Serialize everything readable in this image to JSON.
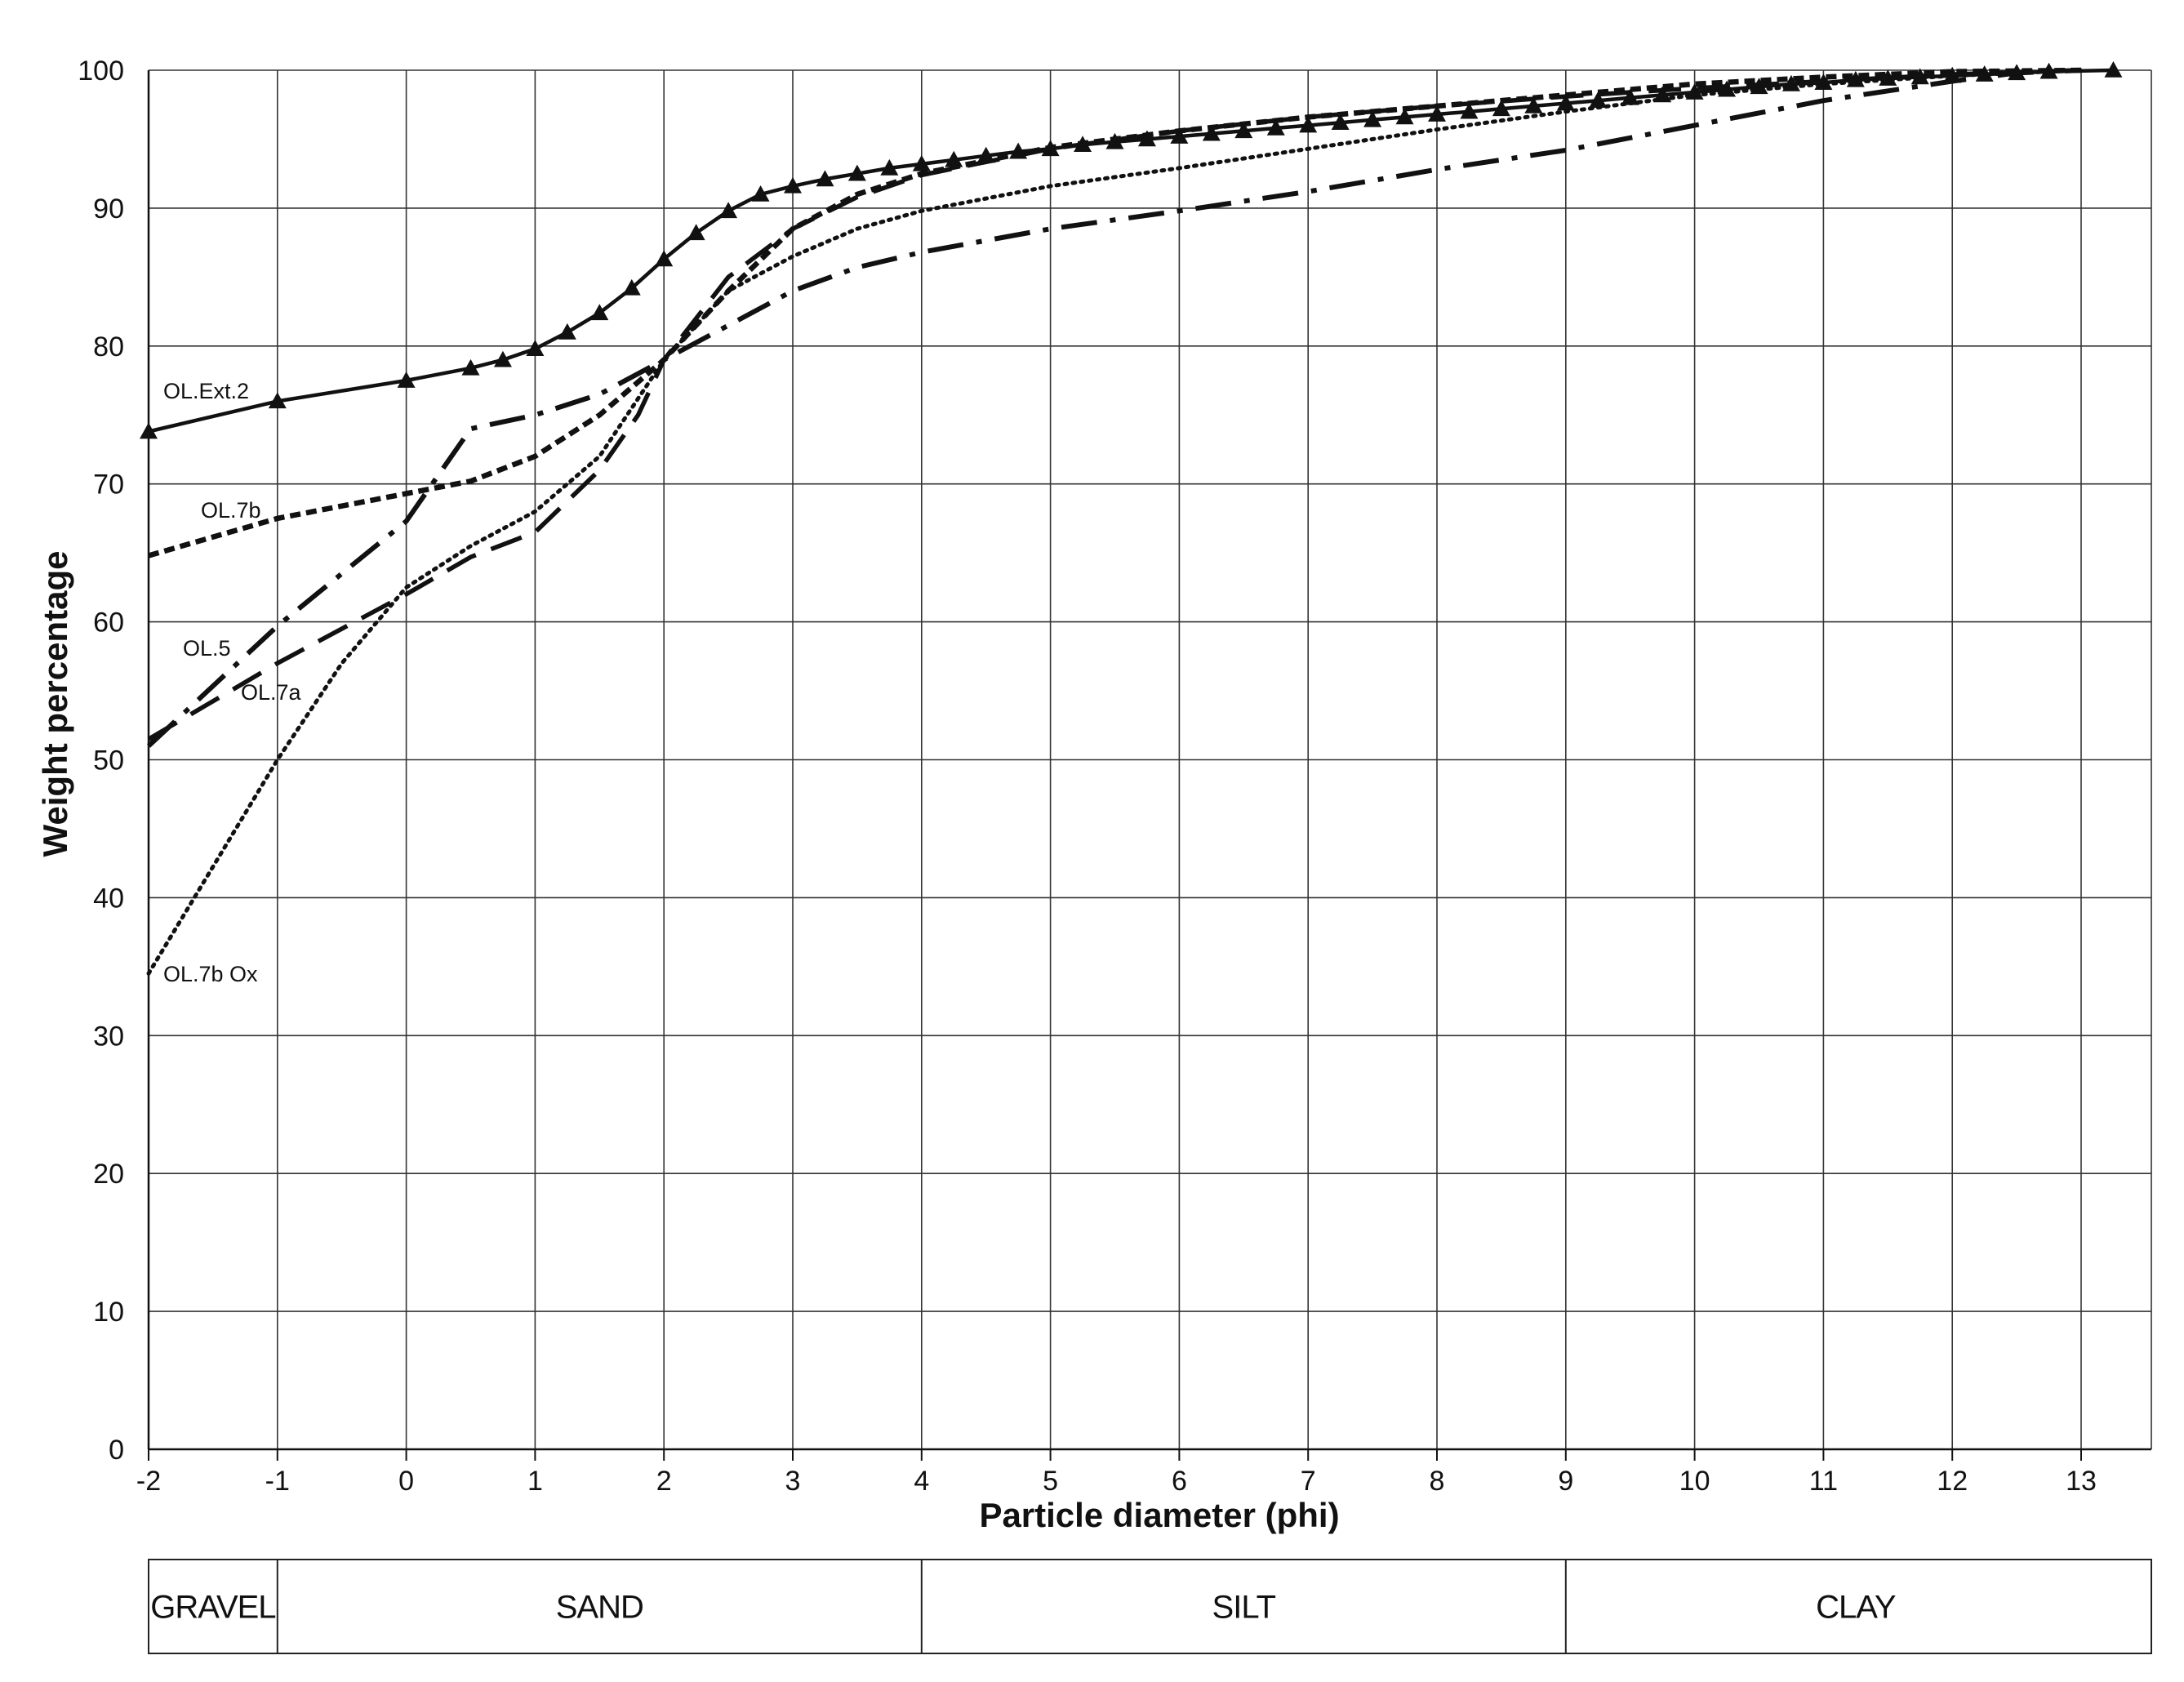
{
  "chart_data": {
    "type": "line",
    "xlabel": "Particle diameter (phi)",
    "ylabel": "Weight percentage",
    "xlim": [
      -2,
      13.5
    ],
    "ylim": [
      0,
      100
    ],
    "x_ticks": [
      -2,
      -1,
      0,
      1,
      2,
      3,
      4,
      5,
      6,
      7,
      8,
      9,
      10,
      11,
      12,
      13
    ],
    "y_ticks": [
      0,
      10,
      20,
      30,
      40,
      50,
      60,
      70,
      80,
      90,
      100
    ],
    "grid": true,
    "legend": "inline labels at left",
    "series": [
      {
        "name": "OL.Ext.2",
        "style": "solid-triangle",
        "points": [
          [
            -2,
            73.8
          ],
          [
            -1,
            76
          ],
          [
            0,
            77.5
          ],
          [
            0.5,
            78.4
          ],
          [
            0.75,
            79
          ],
          [
            1,
            79.8
          ],
          [
            1.25,
            81
          ],
          [
            1.5,
            82.4
          ],
          [
            1.75,
            84.2
          ],
          [
            2,
            86.3
          ],
          [
            2.25,
            88.2
          ],
          [
            2.5,
            89.8
          ],
          [
            2.75,
            91
          ],
          [
            3,
            91.6
          ],
          [
            3.25,
            92.1
          ],
          [
            3.5,
            92.5
          ],
          [
            3.75,
            92.9
          ],
          [
            4,
            93.2
          ],
          [
            4.25,
            93.5
          ],
          [
            4.5,
            93.8
          ],
          [
            4.75,
            94.1
          ],
          [
            5,
            94.3
          ],
          [
            5.25,
            94.6
          ],
          [
            5.5,
            94.8
          ],
          [
            5.75,
            95
          ],
          [
            6,
            95.2
          ],
          [
            6.25,
            95.4
          ],
          [
            6.5,
            95.6
          ],
          [
            6.75,
            95.8
          ],
          [
            7,
            96
          ],
          [
            7.25,
            96.2
          ],
          [
            7.5,
            96.4
          ],
          [
            7.75,
            96.6
          ],
          [
            8,
            96.8
          ],
          [
            8.25,
            97
          ],
          [
            8.5,
            97.2
          ],
          [
            8.75,
            97.4
          ],
          [
            9,
            97.6
          ],
          [
            9.25,
            97.8
          ],
          [
            9.5,
            98
          ],
          [
            9.75,
            98.2
          ],
          [
            10,
            98.4
          ],
          [
            10.25,
            98.6
          ],
          [
            10.5,
            98.8
          ],
          [
            10.75,
            99
          ],
          [
            11,
            99.1
          ],
          [
            11.25,
            99.3
          ],
          [
            11.5,
            99.4
          ],
          [
            11.75,
            99.5
          ],
          [
            12,
            99.6
          ],
          [
            12.25,
            99.7
          ],
          [
            12.5,
            99.8
          ],
          [
            12.75,
            99.9
          ],
          [
            13.25,
            100
          ]
        ]
      },
      {
        "name": "OL.7b",
        "style": "short-dash",
        "points": [
          [
            -2,
            64.8
          ],
          [
            -1,
            67.5
          ],
          [
            0,
            69.3
          ],
          [
            0.5,
            70.2
          ],
          [
            1,
            72
          ],
          [
            1.5,
            75
          ],
          [
            2,
            79
          ],
          [
            2.5,
            84
          ],
          [
            3,
            88.5
          ],
          [
            3.5,
            91
          ],
          [
            4,
            92.5
          ],
          [
            5,
            94.4
          ],
          [
            6,
            95.6
          ],
          [
            7,
            96.6
          ],
          [
            8,
            97.4
          ],
          [
            9,
            98.2
          ],
          [
            10,
            99
          ],
          [
            11,
            99.5
          ],
          [
            12,
            99.9
          ],
          [
            13,
            100
          ]
        ]
      },
      {
        "name": "OL.5",
        "style": "dash-dot",
        "points": [
          [
            -2,
            51
          ],
          [
            -1,
            59.7
          ],
          [
            0,
            67.3
          ],
          [
            0.5,
            74
          ],
          [
            1,
            75
          ],
          [
            1.5,
            76.5
          ],
          [
            2,
            79
          ],
          [
            2.5,
            81.5
          ],
          [
            3,
            84
          ],
          [
            3.5,
            85.7
          ],
          [
            4,
            86.8
          ],
          [
            5,
            88.5
          ],
          [
            6,
            89.8
          ],
          [
            7,
            91.2
          ],
          [
            8,
            92.8
          ],
          [
            9,
            94.2
          ],
          [
            10,
            96
          ],
          [
            11,
            97.8
          ],
          [
            12,
            99.2
          ],
          [
            12.5,
            99.8
          ],
          [
            13,
            100
          ]
        ]
      },
      {
        "name": "OL.7a",
        "style": "long-dash",
        "points": [
          [
            -2,
            51.5
          ],
          [
            -1,
            57
          ],
          [
            0,
            62
          ],
          [
            0.5,
            64.7
          ],
          [
            1,
            66.5
          ],
          [
            1.5,
            71
          ],
          [
            1.8,
            75
          ],
          [
            2,
            79
          ],
          [
            2.5,
            85
          ],
          [
            3,
            88.5
          ],
          [
            3.5,
            90.8
          ],
          [
            4,
            92.4
          ],
          [
            5,
            94.3
          ],
          [
            6,
            95.6
          ],
          [
            7,
            96.6
          ],
          [
            8,
            97.4
          ],
          [
            9,
            98.1
          ],
          [
            10,
            98.7
          ],
          [
            11,
            99.2
          ],
          [
            12,
            99.7
          ],
          [
            13,
            100
          ]
        ]
      },
      {
        "name": "OL.7b Ox",
        "style": "dotted",
        "points": [
          [
            -2,
            34.5
          ],
          [
            -1,
            50
          ],
          [
            -0.5,
            57
          ],
          [
            0,
            62.5
          ],
          [
            0.5,
            65.5
          ],
          [
            1,
            68
          ],
          [
            1.5,
            72
          ],
          [
            2,
            79
          ],
          [
            2.5,
            84
          ],
          [
            3,
            86.5
          ],
          [
            3.5,
            88.5
          ],
          [
            4,
            89.8
          ],
          [
            5,
            91.6
          ],
          [
            6,
            92.9
          ],
          [
            7,
            94.3
          ],
          [
            8,
            95.7
          ],
          [
            9,
            97
          ],
          [
            10,
            98.2
          ],
          [
            11,
            99
          ],
          [
            12,
            99.6
          ],
          [
            13,
            100
          ]
        ]
      }
    ],
    "size_classes": [
      {
        "label": "GRAVEL",
        "from": -2,
        "to": -1
      },
      {
        "label": "SAND",
        "from": -1,
        "to": 4
      },
      {
        "label": "SILT",
        "from": 4,
        "to": 9
      },
      {
        "label": "CLAY",
        "from": 9,
        "to": 13.5
      }
    ]
  }
}
